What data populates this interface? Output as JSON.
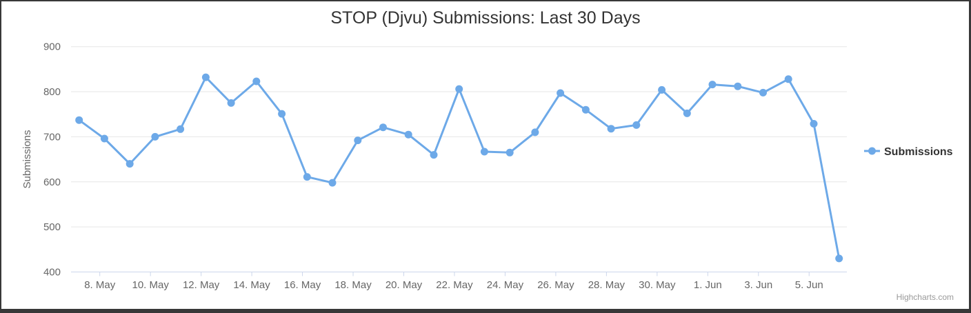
{
  "title": "STOP (Djvu) Submissions: Last 30 Days",
  "legend": {
    "label": "Submissions"
  },
  "credits": {
    "label": "Highcharts.com"
  },
  "colors": {
    "series": "#6da9e8",
    "grid_line": "#e6e6e6",
    "axis_line": "#ccd6eb",
    "title_text": "#333333",
    "axis_label_text": "#666666",
    "axis_title_text": "#666666",
    "legend_text": "#333333",
    "credits_text": "#999999",
    "background": "#ffffff",
    "frame": "#383838"
  },
  "chart_data": {
    "type": "line",
    "title": "STOP (Djvu) Submissions: Last 30 Days",
    "xlabel": "",
    "ylabel": "Submissions",
    "ylim": [
      400,
      900
    ],
    "grid": true,
    "legend_position": "right",
    "y_tick_labels": [
      "400",
      "500",
      "600",
      "700",
      "800",
      "900"
    ],
    "y_tick_values": [
      400,
      500,
      600,
      700,
      800,
      900
    ],
    "x_tick_labels": [
      "8. May",
      "10. May",
      "12. May",
      "14. May",
      "16. May",
      "18. May",
      "20. May",
      "22. May",
      "24. May",
      "26. May",
      "28. May",
      "30. May",
      "1. Jun",
      "3. Jun",
      "5. Jun"
    ],
    "series": [
      {
        "name": "Submissions",
        "x": [
          "7. May",
          "8. May",
          "9. May",
          "10. May",
          "11. May",
          "12. May",
          "13. May",
          "14. May",
          "15. May",
          "16. May",
          "17. May",
          "18. May",
          "19. May",
          "20. May",
          "21. May",
          "22. May",
          "23. May",
          "24. May",
          "25. May",
          "26. May",
          "27. May",
          "28. May",
          "29. May",
          "30. May",
          "31. May",
          "1. Jun",
          "2. Jun",
          "3. Jun",
          "4. Jun",
          "5. Jun",
          "6. Jun"
        ],
        "values": [
          737,
          696,
          640,
          700,
          717,
          832,
          775,
          823,
          751,
          611,
          598,
          692,
          721,
          705,
          660,
          806,
          667,
          665,
          710,
          797,
          760,
          718,
          726,
          804,
          752,
          816,
          812,
          798,
          828,
          729,
          430
        ]
      }
    ]
  }
}
